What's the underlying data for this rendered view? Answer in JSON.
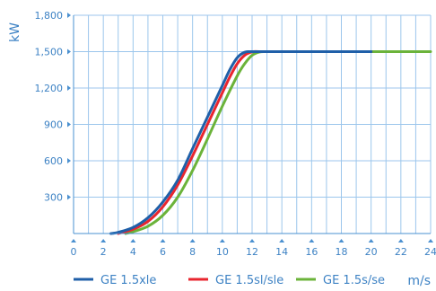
{
  "chart_data": {
    "type": "line",
    "title": "",
    "xlabel": "m/s",
    "ylabel": "kW",
    "xlim": [
      0,
      24
    ],
    "ylim": [
      0,
      1800
    ],
    "grid": true,
    "legend": "bottom",
    "x_ticks": [
      "0",
      "2",
      "4",
      "6",
      "8",
      "10",
      "12",
      "14",
      "16",
      "18",
      "20",
      "22",
      "24"
    ],
    "y_ticks": [
      "300",
      "600",
      "900",
      "1,200",
      "1,500",
      "1,800"
    ],
    "series": [
      {
        "name": "GE 1.5xle",
        "color": "#1f5fa8",
        "x": [
          2.5,
          3,
          4,
          5,
          6,
          7,
          8,
          9,
          10,
          10.5,
          11,
          11.5,
          12,
          14,
          16,
          18,
          20
        ],
        "y": [
          0,
          10,
          50,
          130,
          260,
          440,
          700,
          960,
          1220,
          1350,
          1450,
          1495,
          1500,
          1500,
          1500,
          1500,
          1500
        ]
      },
      {
        "name": "GE 1.5sl/sle",
        "color": "#e8262f",
        "x": [
          3,
          4,
          5,
          6,
          7,
          8,
          9,
          10,
          10.5,
          11,
          11.5,
          12,
          12.5,
          14,
          16,
          18,
          20
        ],
        "y": [
          0,
          35,
          100,
          220,
          400,
          640,
          900,
          1160,
          1290,
          1400,
          1470,
          1498,
          1500,
          1500,
          1500,
          1500,
          1500
        ]
      },
      {
        "name": "GE 1.5s/se",
        "color": "#6bb33a",
        "x": [
          3.5,
          4,
          5,
          6,
          7,
          8,
          9,
          10,
          11,
          11.5,
          12,
          12.5,
          13,
          14,
          16,
          18,
          20,
          22,
          24
        ],
        "y": [
          0,
          15,
          60,
          150,
          300,
          520,
          780,
          1050,
          1300,
          1400,
          1470,
          1497,
          1500,
          1500,
          1500,
          1500,
          1500,
          1500,
          1500
        ]
      }
    ]
  }
}
